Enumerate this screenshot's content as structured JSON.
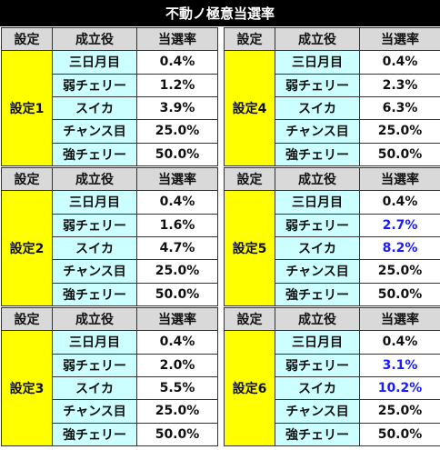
{
  "title": "不動ノ極意当選率",
  "headers": {
    "setting": "設定",
    "role": "成立役",
    "rate": "当選率"
  },
  "colors": {
    "setting_bg": "#ffff00",
    "role_bg": "#ccffff",
    "header_bg": "#d9d9d9",
    "highlight": "#1a1aff"
  },
  "settings": [
    {
      "label": "設定1",
      "rows": [
        {
          "role": "三日月目",
          "rate": "0.4%",
          "highlight": false
        },
        {
          "role": "弱チェリー",
          "rate": "1.2%",
          "highlight": false
        },
        {
          "role": "スイカ",
          "rate": "3.9%",
          "highlight": false
        },
        {
          "role": "チャンス目",
          "rate": "25.0%",
          "highlight": false
        },
        {
          "role": "強チェリー",
          "rate": "50.0%",
          "highlight": false
        }
      ]
    },
    {
      "label": "設定4",
      "rows": [
        {
          "role": "三日月目",
          "rate": "0.4%",
          "highlight": false
        },
        {
          "role": "弱チェリー",
          "rate": "2.3%",
          "highlight": false
        },
        {
          "role": "スイカ",
          "rate": "6.3%",
          "highlight": false
        },
        {
          "role": "チャンス目",
          "rate": "25.0%",
          "highlight": false
        },
        {
          "role": "強チェリー",
          "rate": "50.0%",
          "highlight": false
        }
      ]
    },
    {
      "label": "設定2",
      "rows": [
        {
          "role": "三日月目",
          "rate": "0.4%",
          "highlight": false
        },
        {
          "role": "弱チェリー",
          "rate": "1.6%",
          "highlight": false
        },
        {
          "role": "スイカ",
          "rate": "4.7%",
          "highlight": false
        },
        {
          "role": "チャンス目",
          "rate": "25.0%",
          "highlight": false
        },
        {
          "role": "強チェリー",
          "rate": "50.0%",
          "highlight": false
        }
      ]
    },
    {
      "label": "設定5",
      "rows": [
        {
          "role": "三日月目",
          "rate": "0.4%",
          "highlight": false
        },
        {
          "role": "弱チェリー",
          "rate": "2.7%",
          "highlight": true
        },
        {
          "role": "スイカ",
          "rate": "8.2%",
          "highlight": true
        },
        {
          "role": "チャンス目",
          "rate": "25.0%",
          "highlight": false
        },
        {
          "role": "強チェリー",
          "rate": "50.0%",
          "highlight": false
        }
      ]
    },
    {
      "label": "設定3",
      "rows": [
        {
          "role": "三日月目",
          "rate": "0.4%",
          "highlight": false
        },
        {
          "role": "弱チェリー",
          "rate": "2.0%",
          "highlight": false
        },
        {
          "role": "スイカ",
          "rate": "5.5%",
          "highlight": false
        },
        {
          "role": "チャンス目",
          "rate": "25.0%",
          "highlight": false
        },
        {
          "role": "強チェリー",
          "rate": "50.0%",
          "highlight": false
        }
      ]
    },
    {
      "label": "設定6",
      "rows": [
        {
          "role": "三日月目",
          "rate": "0.4%",
          "highlight": false
        },
        {
          "role": "弱チェリー",
          "rate": "3.1%",
          "highlight": true
        },
        {
          "role": "スイカ",
          "rate": "10.2%",
          "highlight": true
        },
        {
          "role": "チャンス目",
          "rate": "25.0%",
          "highlight": false
        },
        {
          "role": "強チェリー",
          "rate": "50.0%",
          "highlight": false
        }
      ]
    }
  ]
}
